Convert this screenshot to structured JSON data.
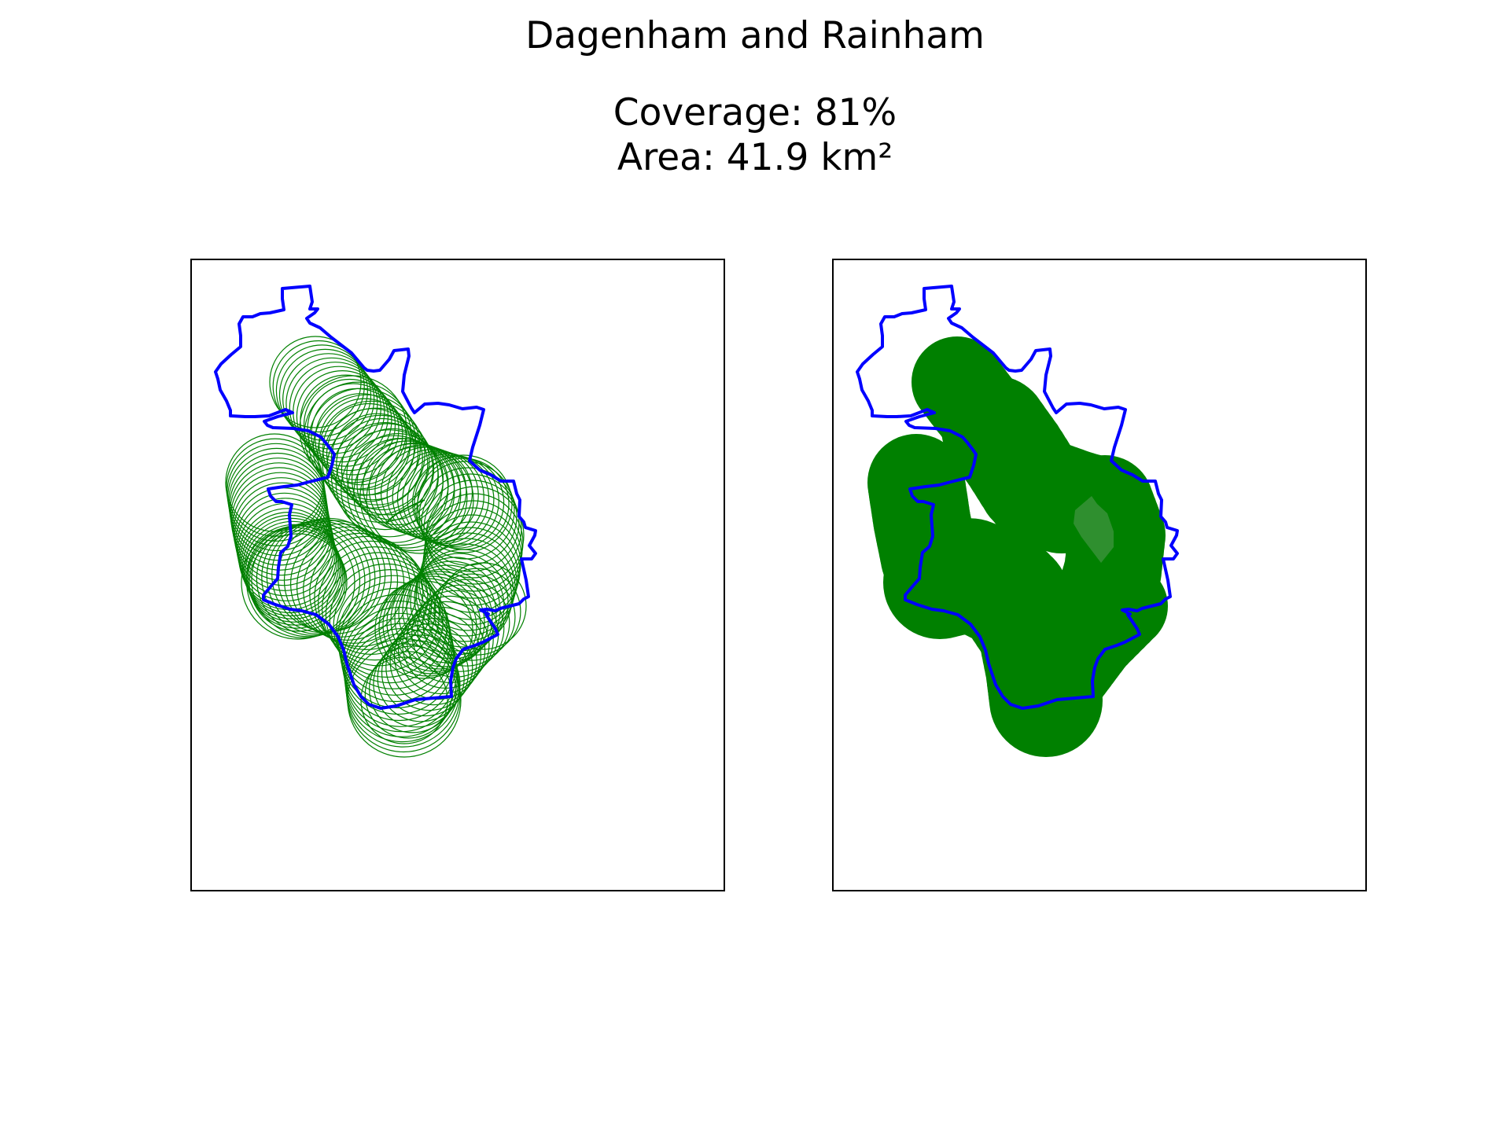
{
  "figure": {
    "title": "Dagenham and Rainham",
    "coverage_text": "Coverage: 81%",
    "area_text": "Area: 41.9 km²"
  },
  "colors": {
    "boundary": "#0000ff",
    "coverage": "#008000",
    "frame": "#000000",
    "background": "#ffffff"
  },
  "panels": [
    {
      "name": "circle-outlines",
      "style": "outline"
    },
    {
      "name": "filled-coverage",
      "style": "filled"
    }
  ]
}
